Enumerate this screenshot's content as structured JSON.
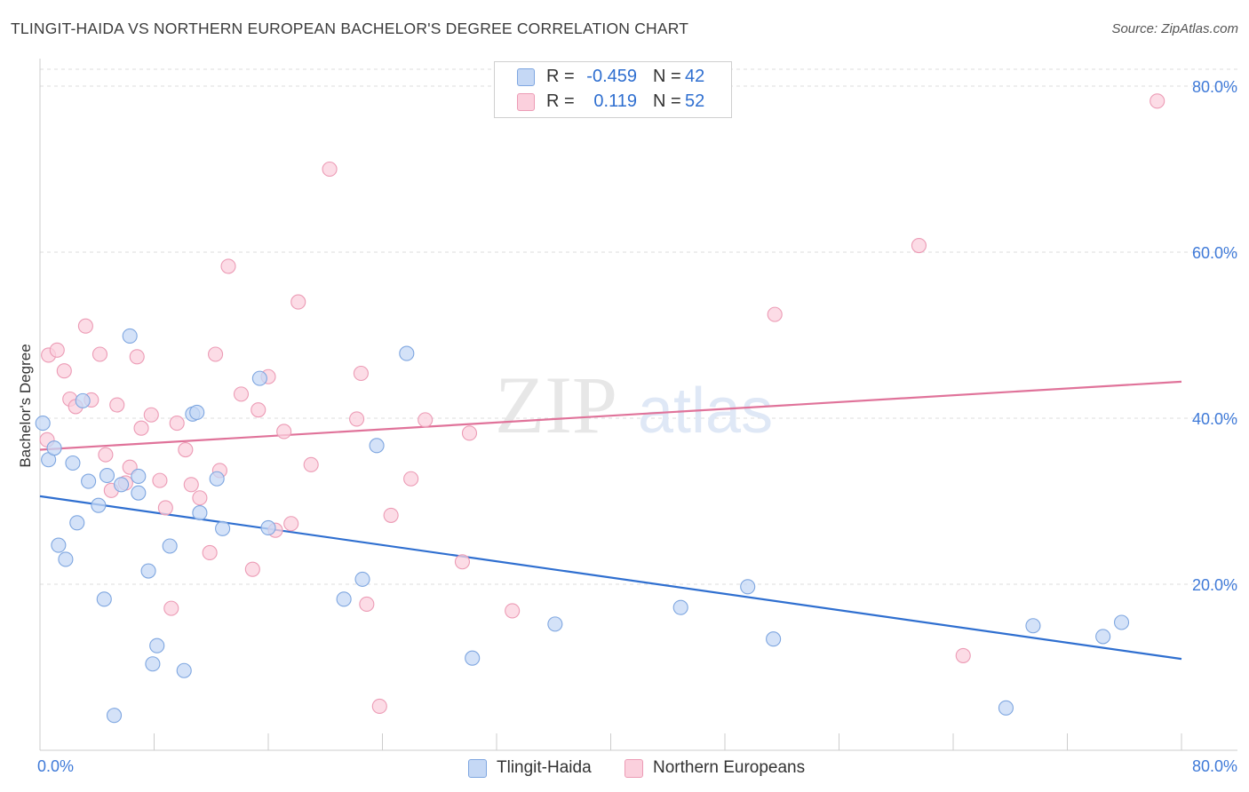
{
  "header": {
    "title": "TLINGIT-HAIDA VS NORTHERN EUROPEAN BACHELOR'S DEGREE CORRELATION CHART",
    "source": "Source: ZipAtlas.com"
  },
  "watermark": {
    "zip": "ZIP",
    "atlas": "atlas"
  },
  "stats_legend": {
    "rows": [
      {
        "r_label": "R =",
        "r_value": "-0.459",
        "n_label": "N =",
        "n_value": "42",
        "color": "#7ea6e0"
      },
      {
        "r_label": "R =",
        "r_value": "0.119",
        "n_label": "N =",
        "n_value": "52",
        "color": "#ec9bb5"
      }
    ]
  },
  "bottom_legend": {
    "items": [
      {
        "label": "Tlingit-Haida"
      },
      {
        "label": "Northern Europeans"
      }
    ]
  },
  "chart_data": {
    "type": "scatter",
    "title": "TLINGIT-HAIDA VS NORTHERN EUROPEAN BACHELOR'S DEGREE CORRELATION CHART",
    "xlabel": "",
    "ylabel": "Bachelor's Degree",
    "xlim": [
      0,
      80
    ],
    "ylim": [
      0,
      80
    ],
    "x_tick_labels": [
      "0.0%",
      "80.0%"
    ],
    "y_ticks": [
      20,
      40,
      60,
      80
    ],
    "y_tick_labels": [
      "20.0%",
      "40.0%",
      "60.0%",
      "80.0%"
    ],
    "grid": true,
    "legend_position": "top-center",
    "series": [
      {
        "name": "Tlingit-Haida",
        "color": "#7ea6e0",
        "fill": "#c5d8f5",
        "line_color": "#2f6fd0",
        "trend": {
          "x": [
            0,
            80
          ],
          "y": [
            30.6,
            11.0
          ]
        },
        "points": [
          [
            0.2,
            39.4
          ],
          [
            0.6,
            35.0
          ],
          [
            1.0,
            36.4
          ],
          [
            1.3,
            24.7
          ],
          [
            1.8,
            23.0
          ],
          [
            2.3,
            34.6
          ],
          [
            2.6,
            27.4
          ],
          [
            3.0,
            42.1
          ],
          [
            3.4,
            32.4
          ],
          [
            4.1,
            29.5
          ],
          [
            4.5,
            18.2
          ],
          [
            4.7,
            33.1
          ],
          [
            5.2,
            4.2
          ],
          [
            5.7,
            32.0
          ],
          [
            6.3,
            49.9
          ],
          [
            6.9,
            31.0
          ],
          [
            6.9,
            33.0
          ],
          [
            7.6,
            21.6
          ],
          [
            7.9,
            10.4
          ],
          [
            8.2,
            12.6
          ],
          [
            9.1,
            24.6
          ],
          [
            10.1,
            9.6
          ],
          [
            10.7,
            40.5
          ],
          [
            11.0,
            40.7
          ],
          [
            11.2,
            28.6
          ],
          [
            12.4,
            32.7
          ],
          [
            12.8,
            26.7
          ],
          [
            15.4,
            44.8
          ],
          [
            16.0,
            26.8
          ],
          [
            21.3,
            18.2
          ],
          [
            22.6,
            20.6
          ],
          [
            23.6,
            36.7
          ],
          [
            25.7,
            47.8
          ],
          [
            30.3,
            11.1
          ],
          [
            36.1,
            15.2
          ],
          [
            44.9,
            17.2
          ],
          [
            49.6,
            19.7
          ],
          [
            51.4,
            13.4
          ],
          [
            67.7,
            5.1
          ],
          [
            69.6,
            15.0
          ],
          [
            74.5,
            13.7
          ],
          [
            75.8,
            15.4
          ]
        ]
      },
      {
        "name": "Northern Europeans",
        "color": "#ec9bb5",
        "fill": "#fbd0dd",
        "line_color": "#e0739a",
        "trend": {
          "x": [
            0,
            80
          ],
          "y": [
            36.2,
            44.4
          ]
        },
        "points": [
          [
            0.5,
            37.4
          ],
          [
            0.6,
            47.6
          ],
          [
            1.2,
            48.2
          ],
          [
            1.7,
            45.7
          ],
          [
            2.1,
            42.3
          ],
          [
            2.5,
            41.4
          ],
          [
            3.2,
            51.1
          ],
          [
            3.6,
            42.2
          ],
          [
            4.2,
            47.7
          ],
          [
            4.6,
            35.6
          ],
          [
            5.0,
            31.3
          ],
          [
            5.4,
            41.6
          ],
          [
            6.0,
            32.2
          ],
          [
            6.3,
            34.1
          ],
          [
            6.8,
            47.4
          ],
          [
            7.1,
            38.8
          ],
          [
            7.8,
            40.4
          ],
          [
            8.4,
            32.5
          ],
          [
            8.8,
            29.2
          ],
          [
            9.2,
            17.1
          ],
          [
            9.6,
            39.4
          ],
          [
            10.2,
            36.2
          ],
          [
            10.6,
            32.0
          ],
          [
            11.2,
            30.4
          ],
          [
            11.9,
            23.8
          ],
          [
            12.3,
            47.7
          ],
          [
            12.6,
            33.7
          ],
          [
            13.2,
            58.3
          ],
          [
            14.1,
            42.9
          ],
          [
            14.9,
            21.8
          ],
          [
            15.3,
            41.0
          ],
          [
            16.0,
            45.0
          ],
          [
            16.5,
            26.5
          ],
          [
            17.1,
            38.4
          ],
          [
            17.6,
            27.3
          ],
          [
            18.1,
            54.0
          ],
          [
            19.0,
            34.4
          ],
          [
            20.3,
            70.0
          ],
          [
            22.2,
            39.9
          ],
          [
            22.5,
            45.4
          ],
          [
            22.9,
            17.6
          ],
          [
            23.8,
            5.3
          ],
          [
            24.6,
            28.3
          ],
          [
            26.0,
            32.7
          ],
          [
            27.0,
            39.8
          ],
          [
            29.6,
            22.7
          ],
          [
            30.1,
            38.2
          ],
          [
            33.1,
            16.8
          ],
          [
            51.5,
            52.5
          ],
          [
            61.6,
            60.8
          ],
          [
            64.7,
            11.4
          ],
          [
            78.3,
            78.2
          ]
        ]
      }
    ]
  }
}
